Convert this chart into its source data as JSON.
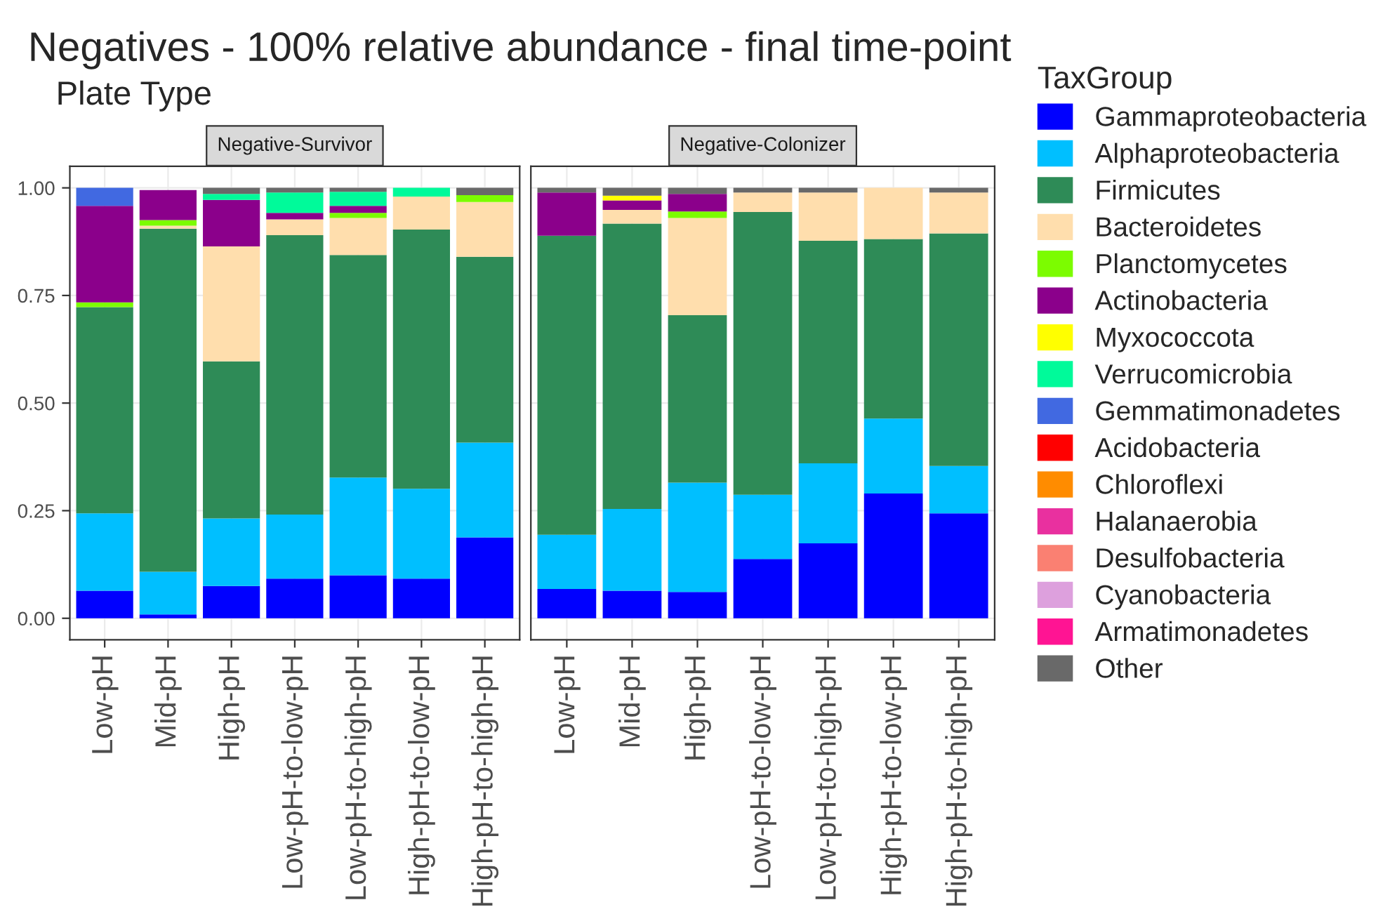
{
  "chart_data": [
    {
      "type": "bar",
      "stacked": true,
      "title": "Negative-Survivor",
      "legend": "right",
      "legend_title": "TaxGroup",
      "annotations": [
        "Negatives - 100% relative abundance - final time-point",
        "Plate Type"
      ],
      "categories": [
        "Low-pH",
        "Mid-pH",
        "High-pH",
        "Low-pH-to-low-pH",
        "Low-pH-to-high-pH",
        "High-pH-to-low-pH",
        "High-pH-to-high-pH"
      ],
      "ylim": [
        -0.05,
        1.05
      ],
      "yticks": [
        {
          "value": 0,
          "label": "0.00"
        },
        {
          "value": 0.25,
          "label": "0.25"
        },
        {
          "value": 0.5,
          "label": "0.50"
        },
        {
          "value": 0.75,
          "label": "0.75"
        },
        {
          "value": 1,
          "label": "1.00"
        }
      ],
      "grid": true,
      "series": [
        {
          "name": "Gammaproteobacteria",
          "color": "#0000ff",
          "values": [
            0.064,
            0.009,
            0.075,
            0.092,
            0.1,
            0.092,
            0.188
          ]
        },
        {
          "name": "Alphaproteobacteria",
          "color": "#00bfff",
          "values": [
            0.18,
            0.099,
            0.157,
            0.149,
            0.227,
            0.209,
            0.22
          ]
        },
        {
          "name": "Firmicutes",
          "color": "#2e8b57",
          "values": [
            0.479,
            0.797,
            0.365,
            0.649,
            0.517,
            0.602,
            0.432
          ]
        },
        {
          "name": "Bacteroidetes",
          "color": "#ffdead",
          "values": [
            0,
            0.007,
            0.267,
            0.037,
            0.086,
            0.077,
            0.127
          ]
        },
        {
          "name": "Planctomycetes",
          "color": "#7cfc00",
          "values": [
            0.011,
            0.013,
            0,
            0,
            0.012,
            0,
            0.016
          ]
        },
        {
          "name": "Actinobacteria",
          "color": "#8b008b",
          "values": [
            0.224,
            0.07,
            0.108,
            0.015,
            0.016,
            0,
            0
          ]
        },
        {
          "name": "Myxococcota",
          "color": "#ffff00",
          "values": [
            0,
            0,
            0,
            0,
            0,
            0,
            0
          ]
        },
        {
          "name": "Verrucomicrobia",
          "color": "#00fa9a",
          "values": [
            0,
            0,
            0.014,
            0.047,
            0.033,
            0.02,
            0
          ]
        },
        {
          "name": "Gemmatimonadetes",
          "color": "#4169e1",
          "values": [
            0.042,
            0,
            0,
            0,
            0,
            0,
            0
          ]
        },
        {
          "name": "Acidobacteria",
          "color": "#ff0000",
          "values": [
            0,
            0,
            0,
            0,
            0,
            0,
            0
          ]
        },
        {
          "name": "Chloroflexi",
          "color": "#ff8c00",
          "values": [
            0,
            0,
            0,
            0,
            0,
            0,
            0
          ]
        },
        {
          "name": "Halanaerobia",
          "color": "#e9309f",
          "values": [
            0,
            0,
            0,
            0,
            0,
            0,
            0
          ]
        },
        {
          "name": "Desulfobacteria",
          "color": "#fa8072",
          "values": [
            0,
            0,
            0,
            0,
            0,
            0,
            0
          ]
        },
        {
          "name": "Cyanobacteria",
          "color": "#dda0dd",
          "values": [
            0,
            0,
            0,
            0,
            0,
            0,
            0
          ]
        },
        {
          "name": "Armatimonadetes",
          "color": "#ff1493",
          "values": [
            0,
            0,
            0,
            0,
            0,
            0,
            0
          ]
        },
        {
          "name": "Other",
          "color": "#696969",
          "values": [
            0,
            0,
            0.014,
            0.011,
            0.009,
            0,
            0.017
          ]
        }
      ]
    },
    {
      "type": "bar",
      "stacked": true,
      "title": "Negative-Colonizer",
      "tick_labels": "x",
      "categories": [
        "Low-pH",
        "Mid-pH",
        "High-pH",
        "Low-pH-to-low-pH",
        "Low-pH-to-high-pH",
        "High-pH-to-low-pH",
        "High-pH-to-high-pH"
      ],
      "ylim": [
        -0.05,
        1.05
      ],
      "yticks": [
        {
          "value": 0,
          "label": null
        },
        {
          "value": 0.25,
          "label": null
        },
        {
          "value": 0.5,
          "label": null
        },
        {
          "value": 0.75,
          "label": null
        },
        {
          "value": 1,
          "label": null
        }
      ],
      "grid": true,
      "series": [
        {
          "color": "#0000ff",
          "values": [
            0.068,
            0.064,
            0.061,
            0.138,
            0.174,
            0.29,
            0.244
          ]
        },
        {
          "color": "#00bfff",
          "values": [
            0.126,
            0.19,
            0.254,
            0.149,
            0.186,
            0.174,
            0.11
          ]
        },
        {
          "color": "#2e8b57",
          "values": [
            0.695,
            0.663,
            0.389,
            0.657,
            0.517,
            0.417,
            0.54
          ]
        },
        {
          "color": "#ffdead",
          "values": [
            0,
            0.032,
            0.226,
            0.045,
            0.112,
            0.119,
            0.095
          ]
        },
        {
          "color": "#7cfc00",
          "values": [
            0,
            0,
            0.015,
            0,
            0,
            0,
            0
          ]
        },
        {
          "color": "#8b008b",
          "values": [
            0.1,
            0.022,
            0.041,
            0,
            0,
            0,
            0
          ]
        },
        {
          "color": "#ffff00",
          "values": [
            0,
            0.011,
            0,
            0,
            0,
            0,
            0
          ]
        },
        {
          "color": "#696969",
          "values": [
            0.011,
            0.018,
            0.014,
            0.011,
            0.011,
            0,
            0.011
          ]
        }
      ]
    }
  ]
}
